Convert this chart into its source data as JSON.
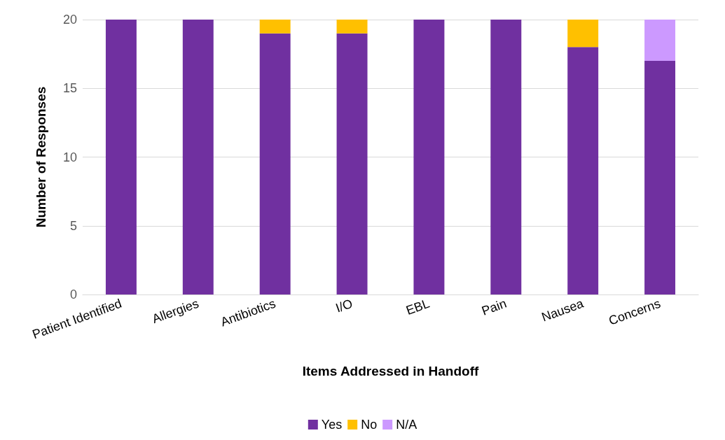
{
  "chart_data": {
    "type": "bar",
    "stacked": true,
    "xlabel": "Items Addressed in Handoff",
    "ylabel": "Number of Responses",
    "categories": [
      "Patient Identified",
      "Allergies",
      "Antibiotics",
      "I/O",
      "EBL",
      "Pain",
      "Nausea",
      "Concerns"
    ],
    "series": [
      {
        "name": "Yes",
        "color": "#7030a0",
        "values": [
          20,
          20,
          19,
          19,
          20,
          20,
          18,
          17
        ]
      },
      {
        "name": "No",
        "color": "#ffc000",
        "values": [
          0,
          0,
          1,
          1,
          0,
          0,
          2,
          0
        ]
      },
      {
        "name": "N/A",
        "color": "#cc99ff",
        "values": [
          0,
          0,
          0,
          0,
          0,
          0,
          0,
          3
        ]
      }
    ],
    "ylim": [
      0,
      20
    ],
    "yticks": [
      0,
      5,
      10,
      15,
      20
    ],
    "grid": "y",
    "legend": "bottom"
  }
}
